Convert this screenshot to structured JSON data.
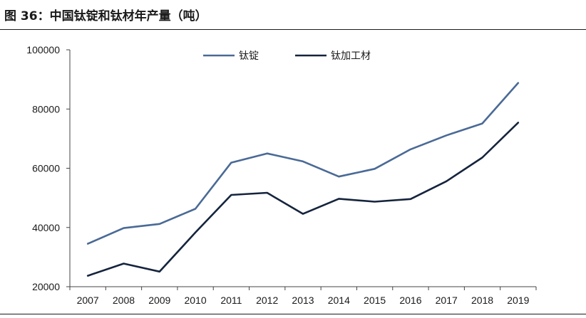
{
  "figure": {
    "title": "图 36：中国钛锭和钛材年产量（吨）"
  },
  "colors": {
    "series_1": "#4a6a96",
    "series_2": "#15243d",
    "axis": "#444444"
  },
  "chart_data": {
    "type": "line",
    "title": "图 36：中国钛锭和钛材年产量（吨）",
    "xlabel": "",
    "ylabel": "",
    "x": [
      "2007",
      "2008",
      "2009",
      "2010",
      "2011",
      "2012",
      "2013",
      "2014",
      "2015",
      "2016",
      "2017",
      "2018",
      "2019"
    ],
    "ylim": [
      20000,
      100000
    ],
    "yticks": [
      20000,
      40000,
      60000,
      80000,
      100000
    ],
    "grid": false,
    "legend": "top-center",
    "series": [
      {
        "name": "钛锭",
        "values": [
          34500,
          39800,
          41200,
          46300,
          61900,
          65000,
          62300,
          57200,
          59800,
          66400,
          71100,
          75100,
          88800
        ]
      },
      {
        "name": "钛加工材",
        "values": [
          23700,
          27800,
          25100,
          38300,
          51000,
          51700,
          44600,
          49700,
          48700,
          49600,
          55600,
          63600,
          75400
        ]
      }
    ]
  }
}
